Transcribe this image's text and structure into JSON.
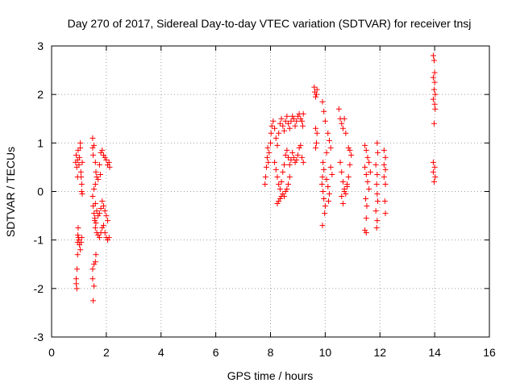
{
  "chart_data": {
    "type": "scatter",
    "title": "Day 270 of 2017, Sidereal Day-to-day VTEC variation (SDTVAR) for receiver tnsj",
    "xlabel": "GPS time / hours",
    "ylabel": "SDTVAR / TECUs",
    "xlim": [
      0,
      16
    ],
    "ylim": [
      -3,
      3
    ],
    "x_ticks": [
      0,
      2,
      4,
      6,
      8,
      10,
      12,
      14,
      16
    ],
    "y_ticks": [
      -3,
      -2,
      -1,
      0,
      1,
      2,
      3
    ],
    "x_tick_labels": [
      "0",
      "2",
      "4",
      "6",
      "8",
      "10",
      "12",
      "14",
      "16"
    ],
    "y_tick_labels": [
      "-3",
      "-2",
      "-1",
      "0",
      "1",
      "2",
      "3"
    ],
    "grid": true,
    "marker": "+",
    "color": "#ff0000",
    "series": [
      {
        "values": [
          [
            0.9,
            -1.9
          ],
          [
            0.9,
            -1.8
          ],
          [
            0.92,
            -2.0
          ],
          [
            0.93,
            -1.6
          ],
          [
            0.95,
            -1.3
          ],
          [
            0.95,
            -1.05
          ],
          [
            0.96,
            -0.9
          ],
          [
            0.97,
            -0.75
          ],
          [
            0.98,
            -0.95
          ],
          [
            1.0,
            -1.0
          ],
          [
            1.02,
            -1.1
          ],
          [
            1.05,
            -1.2
          ],
          [
            1.08,
            -1.05
          ],
          [
            1.1,
            -0.95
          ],
          [
            0.88,
            0.6
          ],
          [
            0.9,
            0.75
          ],
          [
            0.92,
            0.5
          ],
          [
            0.95,
            0.65
          ],
          [
            0.97,
            0.85
          ],
          [
            1.0,
            0.55
          ],
          [
            1.02,
            0.7
          ],
          [
            1.05,
            0.9
          ],
          [
            1.05,
            1.0
          ],
          [
            1.07,
            0.4
          ],
          [
            1.08,
            0.3
          ],
          [
            1.1,
            0.15
          ],
          [
            1.1,
            0.0
          ],
          [
            1.12,
            -0.05
          ],
          [
            1.12,
            0.6
          ],
          [
            0.95,
            0.3
          ],
          [
            1.5,
            1.1
          ],
          [
            1.5,
            0.9
          ],
          [
            1.52,
            0.75
          ],
          [
            1.55,
            0.95
          ],
          [
            1.6,
            0.6
          ],
          [
            1.62,
            0.4
          ],
          [
            1.65,
            0.3
          ],
          [
            1.6,
            0.15
          ],
          [
            1.55,
            0.05
          ],
          [
            1.5,
            -0.1
          ],
          [
            1.52,
            -0.3
          ],
          [
            1.55,
            -0.45
          ],
          [
            1.58,
            -0.6
          ],
          [
            1.6,
            -0.75
          ],
          [
            1.65,
            -0.85
          ],
          [
            1.7,
            -0.9
          ],
          [
            1.75,
            -0.95
          ],
          [
            1.8,
            -0.85
          ],
          [
            1.85,
            -0.75
          ],
          [
            1.9,
            -0.7
          ],
          [
            1.95,
            -0.85
          ],
          [
            2.0,
            -0.95
          ],
          [
            2.05,
            -1.0
          ],
          [
            2.1,
            -0.95
          ],
          [
            2.05,
            -0.6
          ],
          [
            2.0,
            -0.5
          ],
          [
            1.95,
            -0.4
          ],
          [
            1.9,
            -0.3
          ],
          [
            1.85,
            -0.2
          ],
          [
            1.8,
            -0.35
          ],
          [
            1.75,
            -0.45
          ],
          [
            1.7,
            -0.5
          ],
          [
            1.65,
            -0.4
          ],
          [
            1.6,
            -0.25
          ],
          [
            1.58,
            -0.55
          ],
          [
            1.62,
            -0.65
          ],
          [
            1.55,
            -1.5
          ],
          [
            1.5,
            -1.6
          ],
          [
            1.6,
            -1.45
          ],
          [
            1.62,
            -1.3
          ],
          [
            1.55,
            -1.95
          ],
          [
            1.52,
            -2.25
          ],
          [
            1.5,
            -1.8
          ],
          [
            1.85,
            0.85
          ],
          [
            1.9,
            0.75
          ],
          [
            1.95,
            0.7
          ],
          [
            2.0,
            0.65
          ],
          [
            2.05,
            0.55
          ],
          [
            2.1,
            0.6
          ],
          [
            2.12,
            0.5
          ],
          [
            1.8,
            0.8
          ],
          [
            1.75,
            0.55
          ],
          [
            1.78,
            0.35
          ],
          [
            1.7,
            0.25
          ],
          [
            7.8,
            0.15
          ],
          [
            7.82,
            0.3
          ],
          [
            7.85,
            0.5
          ],
          [
            7.88,
            0.7
          ],
          [
            7.9,
            0.9
          ],
          [
            7.92,
            0.6
          ],
          [
            7.95,
            0.8
          ],
          [
            8.0,
            1.0
          ],
          [
            8.02,
            1.2
          ],
          [
            8.05,
            1.35
          ],
          [
            8.1,
            1.45
          ],
          [
            8.15,
            1.3
          ],
          [
            8.2,
            1.1
          ],
          [
            8.25,
            0.95
          ],
          [
            8.3,
            1.2
          ],
          [
            8.35,
            1.4
          ],
          [
            8.4,
            1.5
          ],
          [
            8.45,
            1.35
          ],
          [
            8.5,
            1.25
          ],
          [
            8.55,
            1.45
          ],
          [
            8.6,
            1.55
          ],
          [
            8.65,
            1.4
          ],
          [
            8.7,
            1.3
          ],
          [
            8.75,
            1.45
          ],
          [
            8.8,
            1.55
          ],
          [
            8.85,
            1.5
          ],
          [
            8.9,
            1.35
          ],
          [
            8.95,
            1.45
          ],
          [
            9.0,
            1.55
          ],
          [
            9.05,
            1.6
          ],
          [
            9.1,
            1.5
          ],
          [
            9.15,
            1.45
          ],
          [
            9.2,
            1.6
          ],
          [
            9.18,
            1.35
          ],
          [
            8.15,
            0.6
          ],
          [
            8.2,
            0.45
          ],
          [
            8.25,
            0.3
          ],
          [
            8.3,
            0.15
          ],
          [
            8.35,
            0.05
          ],
          [
            8.4,
            0.2
          ],
          [
            8.45,
            0.4
          ],
          [
            8.5,
            0.55
          ],
          [
            8.55,
            0.75
          ],
          [
            8.6,
            0.85
          ],
          [
            8.65,
            0.7
          ],
          [
            8.7,
            0.55
          ],
          [
            8.75,
            0.65
          ],
          [
            8.8,
            0.8
          ],
          [
            8.85,
            0.7
          ],
          [
            8.9,
            0.6
          ],
          [
            8.95,
            0.65
          ],
          [
            9.0,
            0.75
          ],
          [
            9.05,
            0.9
          ],
          [
            9.1,
            0.95
          ],
          [
            9.15,
            0.7
          ],
          [
            9.2,
            0.6
          ],
          [
            8.25,
            -0.25
          ],
          [
            8.3,
            -0.2
          ],
          [
            8.35,
            -0.15
          ],
          [
            8.4,
            -0.1
          ],
          [
            8.45,
            -0.05
          ],
          [
            8.5,
            -0.1
          ],
          [
            8.55,
            0.0
          ],
          [
            8.6,
            0.05
          ],
          [
            8.65,
            0.15
          ],
          [
            8.7,
            0.3
          ],
          [
            9.6,
            2.15
          ],
          [
            9.62,
            2.05
          ],
          [
            9.65,
            1.95
          ],
          [
            9.68,
            2.0
          ],
          [
            9.7,
            2.1
          ],
          [
            9.65,
            1.3
          ],
          [
            9.7,
            1.2
          ],
          [
            9.65,
            0.9
          ],
          [
            9.68,
            1.0
          ],
          [
            9.9,
            1.85
          ],
          [
            9.95,
            1.65
          ],
          [
            10.0,
            1.45
          ],
          [
            9.92,
            0.6
          ],
          [
            9.95,
            0.45
          ],
          [
            9.9,
            0.3
          ],
          [
            9.88,
            0.15
          ],
          [
            9.92,
            0.0
          ],
          [
            9.95,
            -0.15
          ],
          [
            10.0,
            -0.3
          ],
          [
            9.98,
            -0.45
          ],
          [
            9.9,
            -0.7
          ],
          [
            10.05,
            0.8
          ],
          [
            10.1,
            1.2
          ],
          [
            10.15,
            1.05
          ],
          [
            10.2,
            0.9
          ],
          [
            10.05,
            0.25
          ],
          [
            10.1,
            0.1
          ],
          [
            10.15,
            -0.05
          ],
          [
            10.12,
            -0.2
          ],
          [
            10.2,
            0.5
          ],
          [
            10.25,
            0.35
          ],
          [
            10.5,
            1.7
          ],
          [
            10.55,
            1.5
          ],
          [
            10.6,
            1.4
          ],
          [
            10.65,
            1.3
          ],
          [
            10.7,
            1.5
          ],
          [
            10.75,
            1.2
          ],
          [
            10.55,
            0.6
          ],
          [
            10.6,
            0.4
          ],
          [
            10.65,
            0.2
          ],
          [
            10.7,
            0.05
          ],
          [
            10.75,
            -0.05
          ],
          [
            10.8,
            0.15
          ],
          [
            10.85,
            0.3
          ],
          [
            10.9,
            0.55
          ],
          [
            10.95,
            0.75
          ],
          [
            10.6,
            -0.1
          ],
          [
            10.65,
            -0.25
          ],
          [
            10.7,
            0.0
          ],
          [
            10.85,
            0.9
          ],
          [
            10.9,
            0.85
          ],
          [
            10.8,
            0.1
          ],
          [
            11.45,
            0.95
          ],
          [
            11.5,
            0.85
          ],
          [
            11.55,
            0.7
          ],
          [
            11.45,
            0.5
          ],
          [
            11.5,
            0.35
          ],
          [
            11.55,
            0.2
          ],
          [
            11.6,
            0.05
          ],
          [
            11.48,
            -0.15
          ],
          [
            11.52,
            -0.3
          ],
          [
            11.5,
            -0.55
          ],
          [
            11.45,
            -0.8
          ],
          [
            11.5,
            -0.85
          ],
          [
            11.6,
            0.6
          ],
          [
            11.65,
            0.4
          ],
          [
            11.9,
            1.0
          ],
          [
            11.92,
            0.8
          ],
          [
            11.85,
            0.55
          ],
          [
            11.9,
            0.35
          ],
          [
            11.88,
            0.15
          ],
          [
            11.9,
            -0.05
          ],
          [
            11.92,
            -0.2
          ],
          [
            11.85,
            -0.4
          ],
          [
            11.9,
            -0.6
          ],
          [
            11.88,
            -0.75
          ],
          [
            12.15,
            0.85
          ],
          [
            12.2,
            0.7
          ],
          [
            12.15,
            0.55
          ],
          [
            12.2,
            0.45
          ],
          [
            12.15,
            0.3
          ],
          [
            12.2,
            0.15
          ],
          [
            12.18,
            -0.2
          ],
          [
            12.2,
            -0.45
          ],
          [
            13.95,
            2.8
          ],
          [
            13.98,
            2.7
          ],
          [
            14.0,
            2.45
          ],
          [
            13.95,
            2.35
          ],
          [
            14.0,
            2.25
          ],
          [
            13.98,
            2.1
          ],
          [
            14.02,
            2.0
          ],
          [
            13.95,
            1.9
          ],
          [
            14.0,
            1.8
          ],
          [
            14.02,
            1.7
          ],
          [
            13.98,
            1.4
          ],
          [
            13.95,
            0.6
          ],
          [
            14.0,
            0.5
          ],
          [
            13.95,
            0.4
          ],
          [
            14.02,
            0.3
          ],
          [
            13.98,
            0.2
          ]
        ]
      }
    ]
  }
}
